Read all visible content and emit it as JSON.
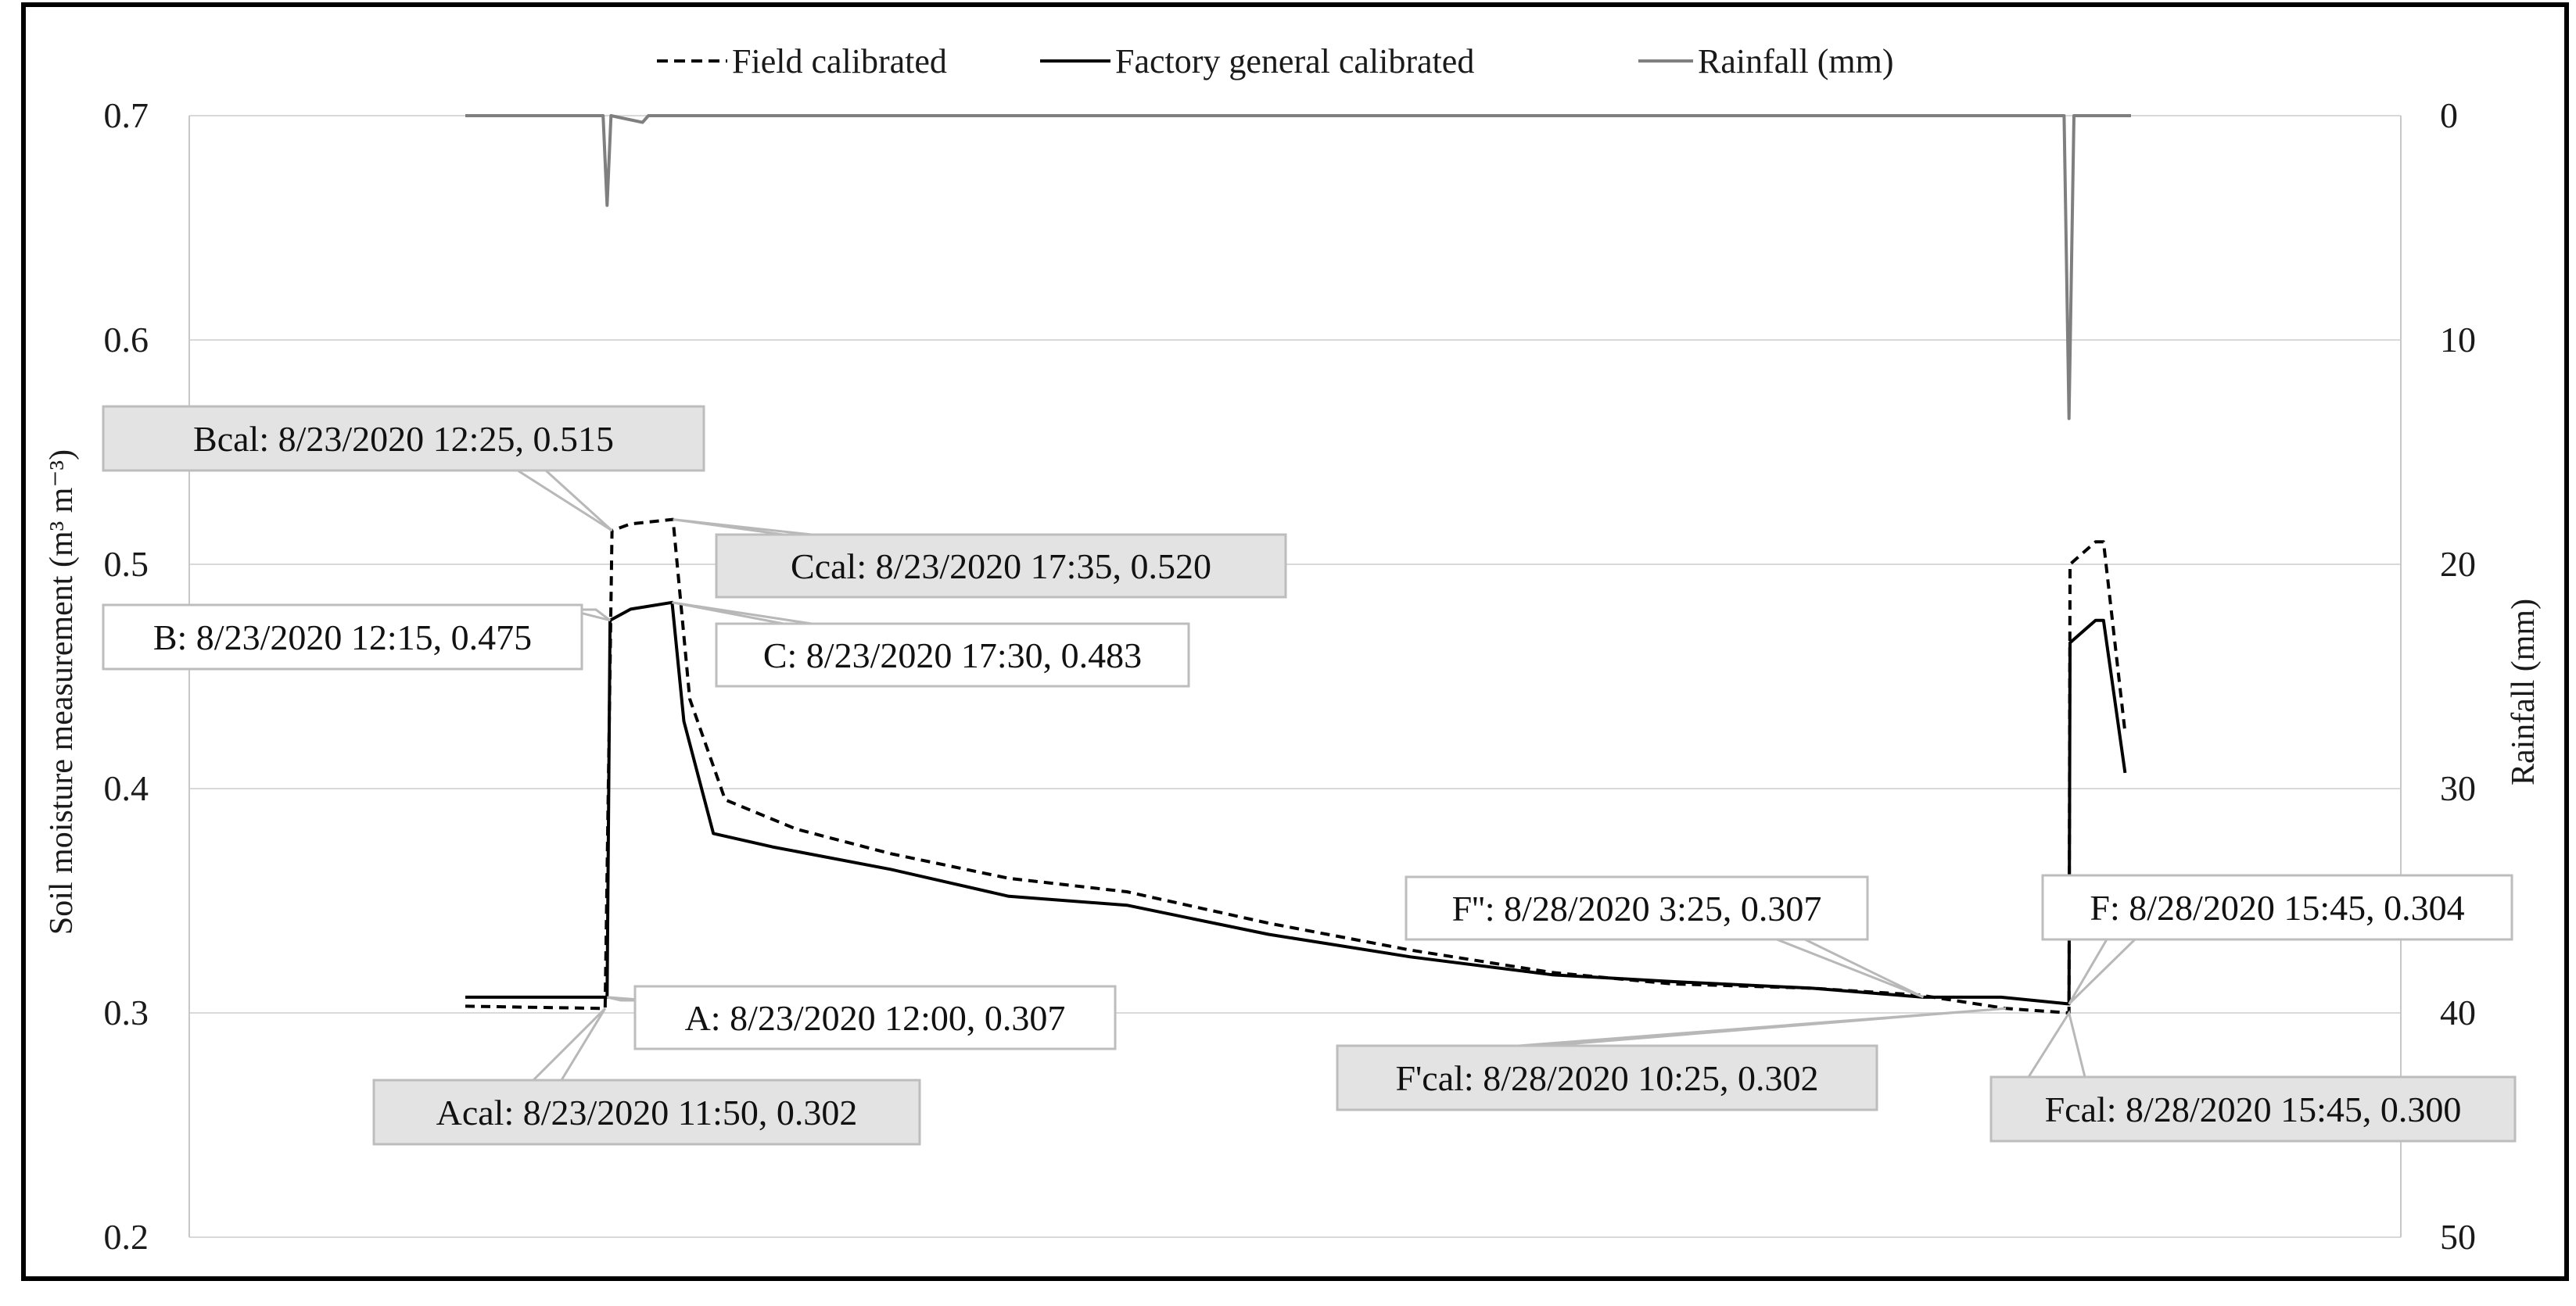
{
  "chart_data": {
    "type": "line",
    "title": "",
    "ylabel": "Soil moisture measurement (m³ m⁻³)",
    "y2label": "Rainfall (mm)",
    "xlabel": "",
    "ylim": [
      0.2,
      0.7
    ],
    "y2lim": [
      0,
      50
    ],
    "y2_inverted": true,
    "yticks": [
      "0.7",
      "0.6",
      "0.5",
      "0.4",
      "0.3",
      "0.2"
    ],
    "y2ticks": [
      "0",
      "10",
      "20",
      "30",
      "40",
      "50"
    ],
    "grid": "horizontal",
    "legend_position": "top-center",
    "x_start": "8/23/2020 00:00",
    "x_end": "8/28/2020 21:00",
    "colors": {
      "field": "#000000",
      "factory": "#000000",
      "rain": "#7f7f7f"
    },
    "series": [
      {
        "name": "Field calibrated",
        "axis": "left",
        "dash": "dashed",
        "x": [
          "8/23/2020 00:00",
          "8/23/2020 11:50",
          "8/23/2020 12:25",
          "8/23/2020 14:00",
          "8/23/2020 17:35",
          "8/23/2020 19:00",
          "8/23/2020 22:00",
          "8/24/2020 04:00",
          "8/24/2020 12:00",
          "8/24/2020 22:00",
          "8/25/2020 08:00",
          "8/25/2020 20:00",
          "8/26/2020 08:00",
          "8/26/2020 20:00",
          "8/27/2020 06:00",
          "8/27/2020 18:00",
          "8/28/2020 03:00",
          "8/28/2020 10:25",
          "8/28/2020 15:45",
          "8/28/2020 15:50",
          "8/28/2020 18:00",
          "8/28/2020 18:40",
          "8/28/2020 20:30"
        ],
        "values": [
          0.303,
          0.302,
          0.515,
          0.518,
          0.52,
          0.44,
          0.395,
          0.382,
          0.371,
          0.36,
          0.354,
          0.34,
          0.328,
          0.318,
          0.313,
          0.311,
          0.308,
          0.302,
          0.3,
          0.5,
          0.51,
          0.51,
          0.425
        ]
      },
      {
        "name": "Factory general calibrated",
        "axis": "left",
        "dash": "solid",
        "x": [
          "8/23/2020 00:00",
          "8/23/2020 12:00",
          "8/23/2020 12:15",
          "8/23/2020 14:00",
          "8/23/2020 17:30",
          "8/23/2020 18:30",
          "8/23/2020 21:00",
          "8/24/2020 02:00",
          "8/24/2020 12:00",
          "8/24/2020 22:00",
          "8/25/2020 08:00",
          "8/25/2020 20:00",
          "8/26/2020 08:00",
          "8/26/2020 20:00",
          "8/27/2020 06:00",
          "8/27/2020 18:00",
          "8/28/2020 03:25",
          "8/28/2020 10:00",
          "8/28/2020 15:45",
          "8/28/2020 15:50",
          "8/28/2020 18:00",
          "8/28/2020 18:40",
          "8/28/2020 20:30"
        ],
        "values": [
          0.307,
          0.307,
          0.475,
          0.48,
          0.483,
          0.43,
          0.38,
          0.374,
          0.364,
          0.352,
          0.348,
          0.335,
          0.325,
          0.317,
          0.314,
          0.311,
          0.307,
          0.307,
          0.304,
          0.465,
          0.475,
          0.475,
          0.407
        ]
      },
      {
        "name": "Rainfall (mm)",
        "axis": "right",
        "dash": "solid",
        "x": [
          "8/23/2020 00:00",
          "8/23/2020 11:40",
          "8/23/2020 12:00",
          "8/23/2020 12:20",
          "8/23/2020 15:00",
          "8/23/2020 15:30",
          "8/28/2020 15:20",
          "8/28/2020 15:45",
          "8/28/2020 16:10",
          "8/28/2020 21:00"
        ],
        "values": [
          0,
          0,
          4,
          0,
          0.3,
          0,
          0,
          13.5,
          0,
          0
        ]
      }
    ],
    "annotations": [
      {
        "label": "Bcal: 8/23/2020 12:25, 0.515",
        "series": "Field calibrated",
        "x": "8/23/2020 12:25",
        "y": 0.515,
        "style": "grey"
      },
      {
        "label": "Ccal: 8/23/2020 17:35, 0.520",
        "series": "Field calibrated",
        "x": "8/23/2020 17:35",
        "y": 0.52,
        "style": "grey"
      },
      {
        "label": "B: 8/23/2020 12:15, 0.475",
        "series": "Factory general calibrated",
        "x": "8/23/2020 12:15",
        "y": 0.475,
        "style": "white"
      },
      {
        "label": "C: 8/23/2020 17:30, 0.483",
        "series": "Factory general calibrated",
        "x": "8/23/2020 17:30",
        "y": 0.483,
        "style": "white"
      },
      {
        "label": "A: 8/23/2020 12:00, 0.307",
        "series": "Factory general calibrated",
        "x": "8/23/2020 12:00",
        "y": 0.307,
        "style": "white"
      },
      {
        "label": "Acal: 8/23/2020 11:50, 0.302",
        "series": "Field calibrated",
        "x": "8/23/2020 11:50",
        "y": 0.302,
        "style": "grey"
      },
      {
        "label": "F'': 8/28/2020 3:25, 0.307",
        "series": "Factory general calibrated",
        "x": "8/28/2020 03:25",
        "y": 0.307,
        "style": "white"
      },
      {
        "label": "F'cal: 8/28/2020 10:25, 0.302",
        "series": "Field calibrated",
        "x": "8/28/2020 10:25",
        "y": 0.302,
        "style": "grey"
      },
      {
        "label": "F: 8/28/2020 15:45, 0.304",
        "series": "Factory general calibrated",
        "x": "8/28/2020 15:45",
        "y": 0.304,
        "style": "white"
      },
      {
        "label": "Fcal: 8/28/2020 15:45, 0.300",
        "series": "Field calibrated",
        "x": "8/28/2020 15:45",
        "y": 0.3,
        "style": "grey"
      }
    ]
  }
}
